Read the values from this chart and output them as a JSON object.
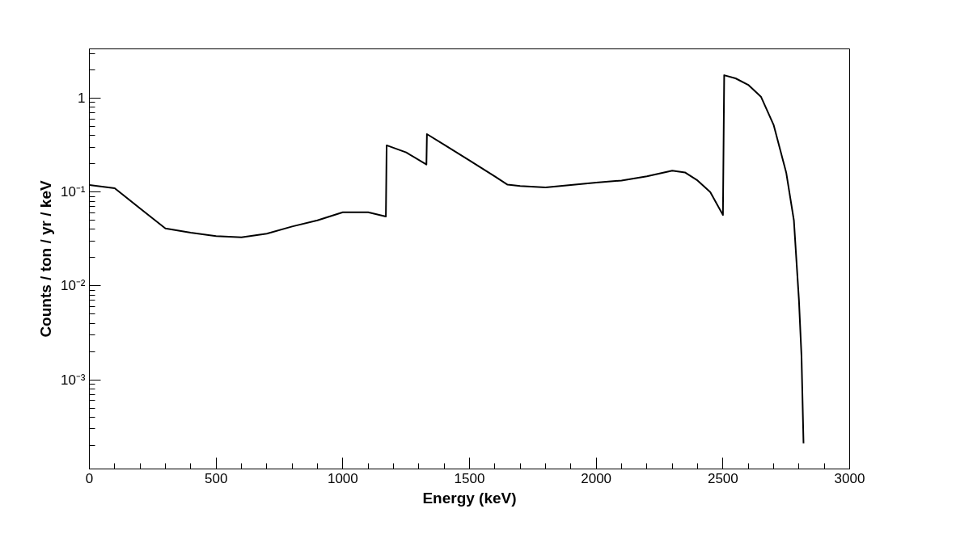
{
  "chart_data": {
    "type": "line",
    "xlabel": "Energy (keV)",
    "ylabel": "Counts / ton / yr / keV",
    "log": "y",
    "grid": false,
    "marker": "none",
    "line_style": "solid",
    "xlim": [
      0,
      3000
    ],
    "ylim": [
      0.000112,
      3.36
    ],
    "xticks": [
      0,
      500,
      1000,
      1500,
      2000,
      2500,
      3000
    ],
    "yticks": [
      {
        "value": 0.001,
        "label": "10⁻³"
      },
      {
        "value": 0.01,
        "label": "10⁻²"
      },
      {
        "value": 0.1,
        "label": "10⁻¹"
      },
      {
        "value": 1,
        "label": "1"
      }
    ],
    "series": [
      {
        "color": "#000000",
        "x": [
          0,
          100,
          200,
          300,
          400,
          500,
          600,
          700,
          800,
          900,
          1000,
          1100,
          1170,
          1173,
          1250,
          1330,
          1332,
          1400,
          1500,
          1600,
          1650,
          1700,
          1800,
          1900,
          2000,
          2100,
          2200,
          2300,
          2350,
          2400,
          2450,
          2500,
          2505,
          2550,
          2600,
          2650,
          2700,
          2750,
          2780,
          2800,
          2810,
          2818
        ],
        "values": [
          0.119,
          0.11,
          0.067,
          0.041,
          0.037,
          0.034,
          0.033,
          0.036,
          0.043,
          0.05,
          0.061,
          0.061,
          0.055,
          0.315,
          0.265,
          0.197,
          0.415,
          0.32,
          0.217,
          0.147,
          0.12,
          0.116,
          0.112,
          0.119,
          0.126,
          0.133,
          0.147,
          0.169,
          0.162,
          0.133,
          0.1,
          0.057,
          1.76,
          1.63,
          1.39,
          1.04,
          0.52,
          0.16,
          0.05,
          0.007,
          0.0018,
          0.00021
        ]
      }
    ]
  }
}
